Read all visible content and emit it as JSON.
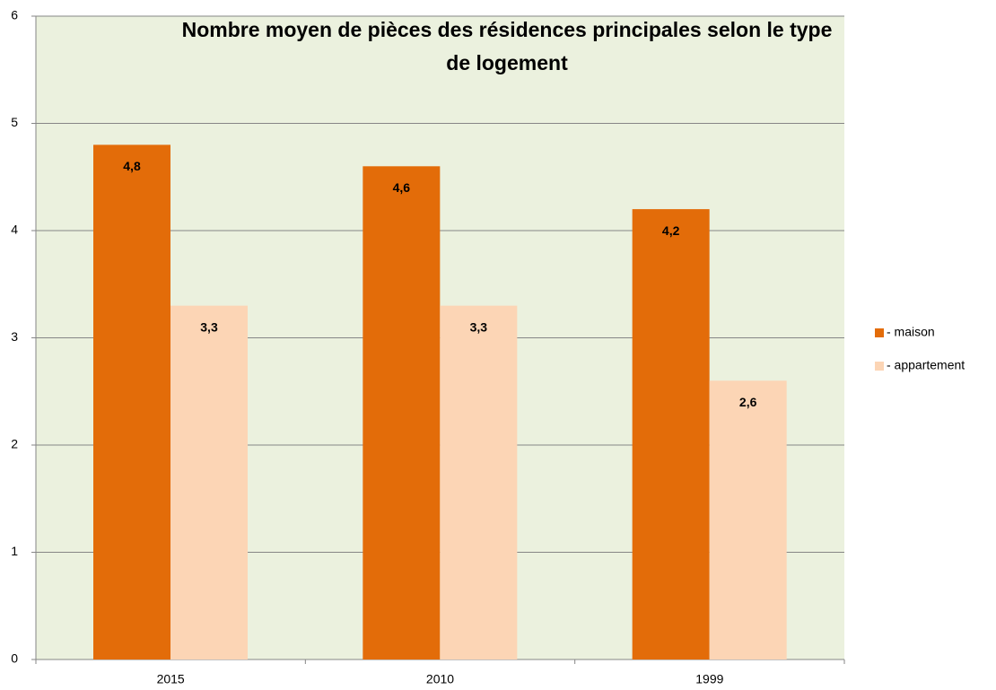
{
  "chart_data": {
    "type": "bar",
    "title": "Nombre moyen de pièces des résidences principales selon le type de logement",
    "categories": [
      "2015",
      "2010",
      "1999"
    ],
    "series": [
      {
        "name": "- maison",
        "color": "#e36c09",
        "values": [
          4.8,
          4.6,
          4.2
        ],
        "value_labels": [
          "4,8",
          "4,6",
          "4,2"
        ]
      },
      {
        "name": "- appartement",
        "color": "#fcd5b5",
        "values": [
          3.3,
          3.3,
          2.6
        ],
        "value_labels": [
          "3,3",
          "3,3",
          "2,6"
        ]
      }
    ],
    "ylim": [
      0,
      6
    ],
    "yticks": [
      0,
      1,
      2,
      3,
      4,
      5,
      6
    ],
    "grid": true,
    "legend": "right"
  }
}
